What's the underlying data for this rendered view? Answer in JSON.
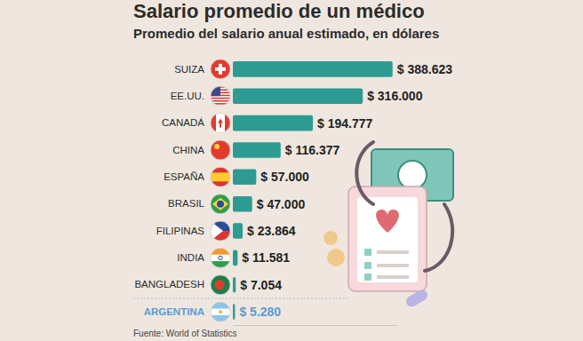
{
  "chart_data": {
    "type": "bar",
    "orientation": "horizontal",
    "title": "Salario promedio de un médico",
    "subtitle": "Promedio del salario anual estimado, en dólares",
    "source": "Fuente: World of Statistics",
    "categories": [
      "SUIZA",
      "EE.UU.",
      "CANADÁ",
      "CHINA",
      "ESPAÑA",
      "BRASIL",
      "FILIPINAS",
      "INDIA",
      "BANGLADESH",
      "ARGENTINA"
    ],
    "values": [
      388623,
      316000,
      194777,
      116377,
      57000,
      47000,
      23864,
      11581,
      7054,
      5280
    ],
    "value_labels": [
      "$ 388.623",
      "$ 316.000",
      "$ 194.777",
      "$ 116.377",
      "$ 57.000",
      "$ 47.000",
      "$ 23.864",
      "$ 11.581",
      "$ 7.054",
      "$ 5.280"
    ],
    "color": "#2e9b92",
    "xlim": [
      0,
      400000
    ],
    "data_labels": true,
    "tick_labels": false,
    "grid": false
  }
}
